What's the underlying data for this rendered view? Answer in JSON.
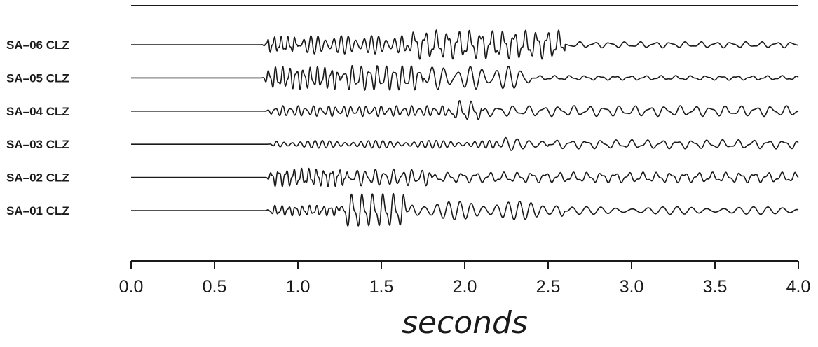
{
  "chart_data": {
    "type": "line",
    "title": "",
    "xlabel": "seconds",
    "ylabel": "",
    "xlim": [
      0.0,
      4.0
    ],
    "x_ticks": [
      "0.0",
      "0.5",
      "1.0",
      "1.5",
      "2.0",
      "2.5",
      "3.0",
      "3.5",
      "4.0"
    ],
    "stroke_color": "#1a1a1a",
    "background": "#ffffff",
    "grid": false,
    "legend": "none",
    "series": [
      {
        "name": "SA–06 CLZ",
        "onset": 0.78,
        "segments": [
          [
            0.78,
            1.0,
            0.55,
            24
          ],
          [
            1.0,
            1.65,
            0.6,
            22
          ],
          [
            1.65,
            2.6,
            0.95,
            15
          ],
          [
            2.6,
            4.0,
            0.2,
            11
          ]
        ],
        "seed": 6
      },
      {
        "name": "SA–05 CLZ",
        "onset": 0.78,
        "segments": [
          [
            0.78,
            1.25,
            0.75,
            24
          ],
          [
            1.25,
            1.75,
            0.85,
            20
          ],
          [
            1.75,
            2.4,
            0.75,
            13
          ],
          [
            2.4,
            4.0,
            0.15,
            11
          ]
        ],
        "seed": 5
      },
      {
        "name": "SA–04 CLZ",
        "onset": 0.8,
        "segments": [
          [
            0.8,
            1.9,
            0.35,
            22
          ],
          [
            1.9,
            2.1,
            0.7,
            14
          ],
          [
            2.1,
            4.0,
            0.35,
            11
          ]
        ],
        "seed": 4
      },
      {
        "name": "SA–03 CLZ",
        "onset": 0.82,
        "segments": [
          [
            0.82,
            2.2,
            0.25,
            22
          ],
          [
            2.2,
            2.5,
            0.45,
            14
          ],
          [
            2.5,
            4.0,
            0.3,
            11
          ]
        ],
        "seed": 3
      },
      {
        "name": "SA–02 CLZ",
        "onset": 0.8,
        "segments": [
          [
            0.8,
            1.3,
            0.6,
            22
          ],
          [
            1.3,
            1.8,
            0.55,
            18
          ],
          [
            1.8,
            4.0,
            0.35,
            12
          ]
        ],
        "seed": 2
      },
      {
        "name": "SA–01 CLZ",
        "onset": 0.8,
        "segments": [
          [
            0.8,
            1.25,
            0.35,
            24
          ],
          [
            1.25,
            1.65,
            1.2,
            16
          ],
          [
            1.65,
            2.6,
            0.6,
            14
          ],
          [
            2.6,
            4.0,
            0.25,
            11
          ]
        ],
        "seed": 1
      }
    ]
  }
}
